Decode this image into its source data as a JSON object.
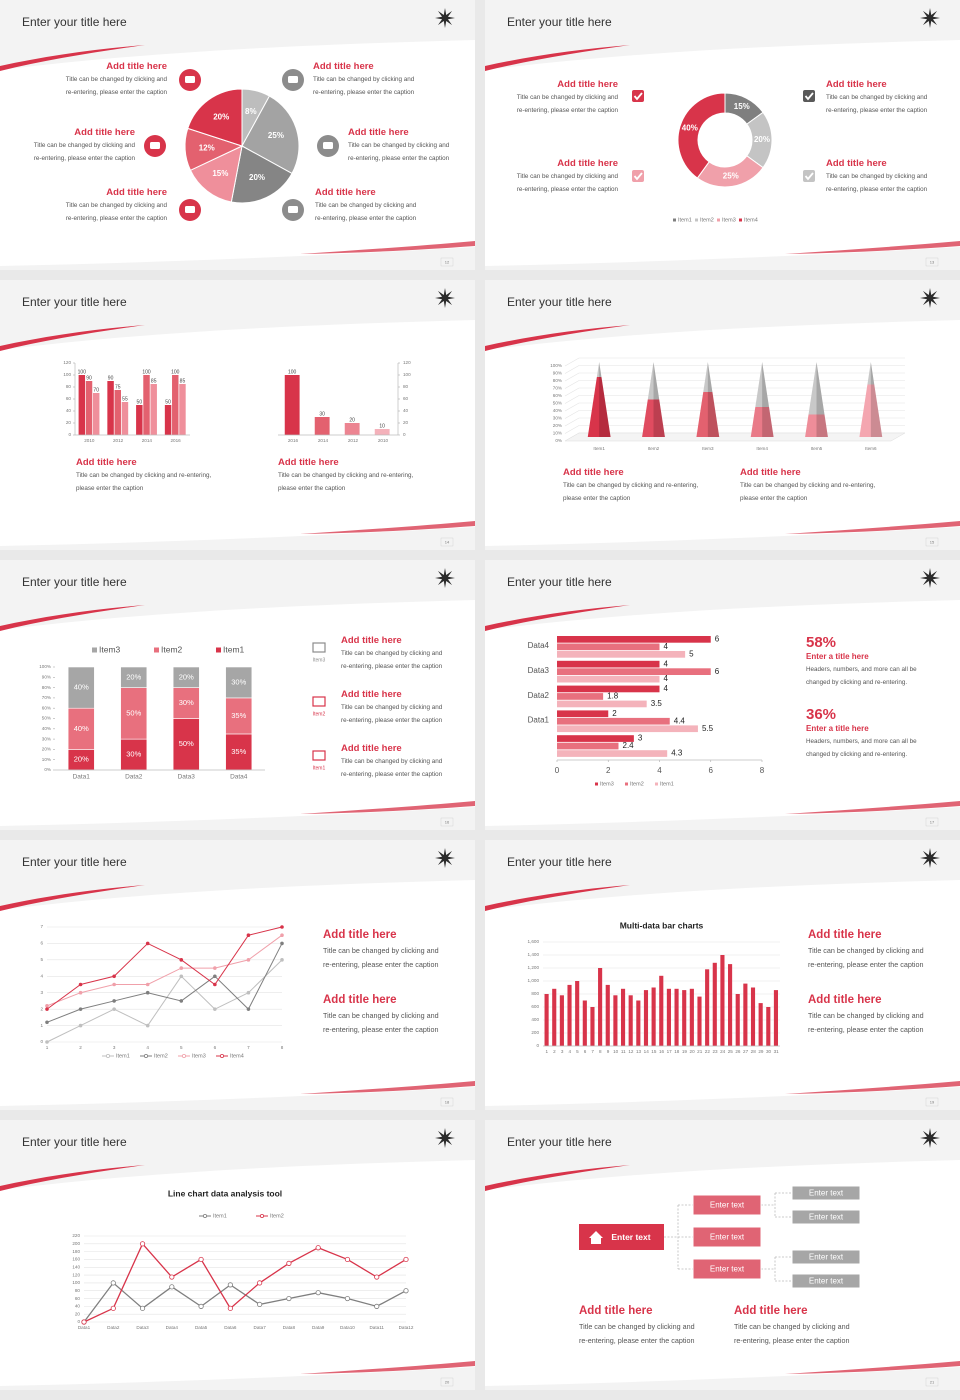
{
  "slides": [
    {
      "title": "Enter your title here",
      "page": "12",
      "blocks": [
        {
          "heading": "Add title here",
          "body": [
            "Title can be changed by clicking and",
            "re-entering, please enter the caption"
          ]
        },
        {
          "heading": "Add title here",
          "body": [
            "Title can be changed by clicking and",
            "re-entering, please enter the caption"
          ]
        },
        {
          "heading": "Add title here",
          "body": [
            "Title can be changed by clicking and",
            "re-entering, please enter the caption"
          ]
        },
        {
          "heading": "Add title here",
          "body": [
            "Title can be changed by clicking and",
            "re-entering, please enter the caption"
          ]
        },
        {
          "heading": "Add title here",
          "body": [
            "Title can be changed by clicking and",
            "re-entering, please enter the caption"
          ]
        },
        {
          "heading": "Add title here",
          "body": [
            "Title can be changed by clicking and",
            "re-entering, please enter the caption"
          ]
        }
      ],
      "chart_data": {
        "type": "pie",
        "values": [
          8,
          25,
          20,
          15,
          12,
          20
        ],
        "value_labels": [
          "8%",
          "25%",
          "20%",
          "15%",
          "12%",
          "20%"
        ],
        "colors": [
          "#bdbdbd",
          "#a3a3a3",
          "#858585",
          "#ef8f9b",
          "#e3616f",
          "#d8344a"
        ]
      }
    },
    {
      "title": "Enter your title here",
      "page": "13",
      "blocks": [
        {
          "heading": "Add title here",
          "body": [
            "Title can be changed by clicking and",
            "re-entering, please enter the caption"
          ]
        },
        {
          "heading": "Add title here",
          "body": [
            "Title can be changed by clicking and",
            "re-entering, please enter the caption"
          ]
        },
        {
          "heading": "Add title here",
          "body": [
            "Title can be changed by clicking and",
            "re-entering, please enter the caption"
          ]
        },
        {
          "heading": "Add title here",
          "body": [
            "Title can be changed by clicking and",
            "re-entering, please enter the caption"
          ]
        }
      ],
      "chart_data": {
        "type": "donut",
        "categories": [
          "Item1",
          "Item2",
          "Item3",
          "Item4"
        ],
        "values": [
          15,
          20,
          25,
          40
        ],
        "value_labels": [
          "15%",
          "20%",
          "25%",
          "40%"
        ],
        "colors": [
          "#7f7f7f",
          "#c4c4c4",
          "#f0a0aa",
          "#d8344a"
        ]
      }
    },
    {
      "title": "Enter your title here",
      "page": "14",
      "blocks": [
        {
          "heading": "Add title here",
          "body": [
            "Title can be changed by clicking and re-entering,",
            "please enter the caption"
          ]
        },
        {
          "heading": "Add title here",
          "body": [
            "Title can be changed by clicking and re-entering,",
            "please enter the caption"
          ]
        }
      ],
      "chart_data": [
        {
          "type": "bar",
          "categories": [
            "2010",
            "2012",
            "2014",
            "2016"
          ],
          "series": [
            {
              "color": "#d8344a",
              "values": [
                100,
                90,
                50,
                50
              ]
            },
            {
              "color": "#e3616f",
              "values": [
                90,
                75,
                100,
                100
              ]
            },
            {
              "color": "#ef8f9b",
              "values": [
                70,
                55,
                85,
                85
              ]
            }
          ],
          "ylim": [
            0,
            120
          ],
          "yticks": [
            0,
            20,
            40,
            60,
            80,
            100,
            120
          ],
          "data_labels": true,
          "grid": false
        },
        {
          "type": "bar",
          "categories": [
            "2016",
            "2014",
            "2012",
            "2010"
          ],
          "values": [
            100,
            30,
            20,
            10
          ],
          "colors": [
            "#d8344a",
            "#e3616f",
            "#ec8491",
            "#f4b1ba"
          ],
          "ylim": [
            0,
            120
          ],
          "yticks": [
            0,
            20,
            40,
            60,
            80,
            100,
            120
          ],
          "y_axis": "right",
          "data_labels": true,
          "grid": false
        }
      ]
    },
    {
      "title": "Enter your title here",
      "page": "15",
      "blocks": [
        {
          "heading": "Add title here",
          "body": [
            "Title can be changed by clicking and re-entering,",
            "please enter the caption"
          ]
        },
        {
          "heading": "Add title here",
          "body": [
            "Title can be changed by clicking and re-entering,",
            "please enter the caption"
          ]
        }
      ],
      "chart_data": {
        "type": "cone",
        "categories": [
          "Item1",
          "Item2",
          "Item3",
          "Item4",
          "Item5",
          "Item6"
        ],
        "series": [
          {
            "values": [
              80,
              50,
              60,
              40,
              30,
              70
            ],
            "colors": [
              "#d8344a",
              "#e04c60",
              "#e3616f",
              "#e97a88",
              "#ee8d99",
              "#f4a6b0"
            ]
          },
          {
            "values": [
              20,
              50,
              40,
              60,
              70,
              30
            ],
            "color": "#c8c8c8"
          }
        ],
        "ylim": [
          0,
          100
        ],
        "yticks": [
          {
            "value": 0,
            "label": "0%"
          },
          {
            "value": 10,
            "label": "10%"
          },
          {
            "value": 20,
            "label": "20%"
          },
          {
            "value": 30,
            "label": "30%"
          },
          {
            "value": 40,
            "label": "40%"
          },
          {
            "value": 50,
            "label": "50%"
          },
          {
            "value": 60,
            "label": "60%"
          },
          {
            "value": 70,
            "label": "70%"
          },
          {
            "value": 80,
            "label": "80%"
          },
          {
            "value": 90,
            "label": "90%"
          },
          {
            "value": 100,
            "label": "100%"
          }
        ],
        "grid": true
      }
    },
    {
      "title": "Enter your title here",
      "page": "16",
      "blocks": [
        {
          "heading": "Add title here",
          "body": [
            "Title can be changed by clicking and",
            "re-entering, please enter the caption"
          ]
        },
        {
          "heading": "Add title here",
          "body": [
            "Title can be changed by clicking and",
            "re-entering, please enter the caption"
          ]
        },
        {
          "heading": "Add title here",
          "body": [
            "Title can be changed by clicking and",
            "re-entering, please enter the caption"
          ]
        }
      ],
      "icon_labels": [
        "Item3",
        "Item2",
        "Item1"
      ],
      "chart_data": {
        "type": "stacked_bar",
        "categories": [
          "Data1",
          "Data2",
          "Data3",
          "Data4"
        ],
        "series": [
          {
            "name": "Item1",
            "color": "#d8344a",
            "values": [
              20,
              30,
              50,
              35
            ],
            "value_labels": [
              "20%",
              "30%",
              "50%",
              "35%"
            ]
          },
          {
            "name": "Item2",
            "color": "#e8707e",
            "values": [
              40,
              50,
              30,
              35
            ],
            "value_labels": [
              "40%",
              "50%",
              "30%",
              "35%"
            ]
          },
          {
            "name": "Item3",
            "color": "#a6a6a6",
            "values": [
              40,
              20,
              20,
              30
            ],
            "value_labels": [
              "40%",
              "20%",
              "20%",
              "30%"
            ]
          }
        ],
        "ylim": [
          0,
          100
        ],
        "yticks": [
          {
            "value": 0,
            "label": "0%"
          },
          {
            "value": 10,
            "label": "10%"
          },
          {
            "value": 20,
            "label": "20%"
          },
          {
            "value": 30,
            "label": "30%"
          },
          {
            "value": 40,
            "label": "40%"
          },
          {
            "value": 50,
            "label": "50%"
          },
          {
            "value": 60,
            "label": "60%"
          },
          {
            "value": 70,
            "label": "70%"
          },
          {
            "value": 80,
            "label": "80%"
          },
          {
            "value": 90,
            "label": "90%"
          },
          {
            "value": 100,
            "label": "100%"
          }
        ],
        "grid": false
      }
    },
    {
      "title": "Enter your title here",
      "page": "17",
      "highlights": [
        {
          "value": "58%",
          "heading": "Enter a title here",
          "body": [
            "Headers, numbers, and more can all be",
            "changed by clicking and re-entering."
          ]
        },
        {
          "value": "36%",
          "heading": "Enter a title here",
          "body": [
            "Headers, numbers, and more can all be",
            "changed by clicking and re-entering."
          ]
        }
      ],
      "chart_data": {
        "type": "hbar",
        "categories": [
          "Data4",
          "Data3",
          "Data2",
          "Data1",
          null
        ],
        "series": [
          {
            "name": "Item3",
            "color": "#d8344a",
            "values": [
              6,
              4,
              4,
              2,
              3
            ]
          },
          {
            "name": "Item2",
            "color": "#e8707e",
            "values": [
              4,
              6,
              1.8,
              4.4,
              2.4
            ]
          },
          {
            "name": "Item1",
            "color": "#f4b3bb",
            "values": [
              5,
              4,
              3.5,
              5.5,
              4.3
            ]
          }
        ],
        "xlim": [
          0,
          8
        ],
        "xticks": [
          0,
          2,
          4,
          6,
          8
        ]
      }
    },
    {
      "title": "Enter your title here",
      "page": "18",
      "blocks": [
        {
          "heading": "Add title here",
          "body": [
            "Title can be changed by clicking and",
            "re-entering, please enter the caption"
          ]
        },
        {
          "heading": "Add title here",
          "body": [
            "Title can be changed by clicking and",
            "re-entering, please enter the caption"
          ]
        }
      ],
      "chart_data": {
        "type": "line",
        "x": [
          1,
          2,
          3,
          4,
          5,
          6,
          7,
          8
        ],
        "xlim": [
          1,
          8
        ],
        "xticks": [
          1,
          2,
          3,
          4,
          5,
          6,
          7,
          8
        ],
        "series": [
          {
            "name": "Item1",
            "color": "#bfbfbf",
            "values": [
              0,
              1,
              2,
              1,
              4,
              2,
              3,
              5
            ]
          },
          {
            "name": "Item2",
            "color": "#7f7f7f",
            "values": [
              1.2,
              2,
              2.5,
              3,
              2.5,
              4,
              2,
              6
            ]
          },
          {
            "name": "Item3",
            "color": "#f0a0aa",
            "values": [
              2.2,
              3,
              3.5,
              3.5,
              4.5,
              4.5,
              5,
              6.5
            ]
          },
          {
            "name": "Item4",
            "color": "#d8344a",
            "values": [
              2,
              3.5,
              4,
              6,
              5,
              3.5,
              6.5,
              7
            ]
          }
        ],
        "ylim": [
          0,
          7
        ],
        "yticks": [
          0,
          1,
          2,
          3,
          4,
          5,
          6,
          7
        ],
        "grid": true,
        "markers": true
      }
    },
    {
      "title": "Enter your title here",
      "page": "19",
      "blocks": [
        {
          "heading": "Add title here",
          "body": [
            "Title can be changed by clicking and",
            "re-entering, please enter the caption"
          ]
        },
        {
          "heading": "Add title here",
          "body": [
            "Title can be changed by clicking and",
            "re-entering, please enter the caption"
          ]
        }
      ],
      "chart_data": {
        "type": "bar",
        "title": "Multi-data bar charts",
        "categories": [
          1,
          2,
          3,
          4,
          5,
          6,
          7,
          8,
          9,
          10,
          11,
          12,
          13,
          14,
          15,
          16,
          17,
          18,
          19,
          20,
          21,
          22,
          23,
          24,
          25,
          26,
          27,
          28,
          29,
          30,
          31
        ],
        "values": [
          800,
          880,
          780,
          940,
          1000,
          700,
          600,
          1200,
          940,
          780,
          880,
          780,
          700,
          860,
          900,
          1080,
          880,
          880,
          860,
          880,
          760,
          1180,
          1280,
          1400,
          1260,
          800,
          960,
          900,
          660,
          600,
          860
        ],
        "color": "#d8344a",
        "ylim": [
          0,
          1600
        ],
        "yticks": [
          0,
          200,
          400,
          600,
          800,
          {
            "value": 1000,
            "label": "1,000"
          },
          {
            "value": 1200,
            "label": "1,200"
          },
          {
            "value": 1400,
            "label": "1,400"
          },
          {
            "value": 1600,
            "label": "1,600"
          }
        ],
        "grid": true
      }
    },
    {
      "title": "Enter your title here",
      "page": "20",
      "chart_data": {
        "type": "line",
        "title": "Line chart data analysis tool",
        "categories": [
          "Data1",
          "Data2",
          "Data3",
          "Data4",
          "Data5",
          "Data6",
          "Data7",
          "Data8",
          "Data9",
          "Data10",
          "Data11",
          "Data12"
        ],
        "series": [
          {
            "name": "Item1",
            "color": "#7f7f7f",
            "values": [
              0,
              100,
              35,
              90,
              40,
              95,
              45,
              60,
              75,
              60,
              40,
              80
            ]
          },
          {
            "name": "Item2",
            "color": "#d8344a",
            "values": [
              0,
              35,
              200,
              115,
              160,
              35,
              100,
              150,
              190,
              160,
              115,
              160
            ]
          }
        ],
        "ylim": [
          0,
          220
        ],
        "yticks": [
          0,
          20,
          40,
          60,
          80,
          100,
          120,
          140,
          160,
          180,
          200,
          220
        ],
        "grid": true,
        "markers": true
      }
    },
    {
      "title": "Enter your title here",
      "page": "21",
      "blocks": [
        {
          "heading": "Add title here",
          "body": [
            "Title can be changed by clicking and",
            "re-entering, please enter the caption"
          ]
        },
        {
          "heading": "Add title here",
          "body": [
            "Title can be changed by clicking and",
            "re-entering, please enter the caption"
          ]
        }
      ],
      "diagram": {
        "root": "Enter text",
        "branches": [
          "Enter text",
          "Enter text",
          "Enter text"
        ],
        "leaves": [
          "Enter text",
          "Enter text",
          "Enter text",
          "Enter text"
        ]
      }
    }
  ]
}
